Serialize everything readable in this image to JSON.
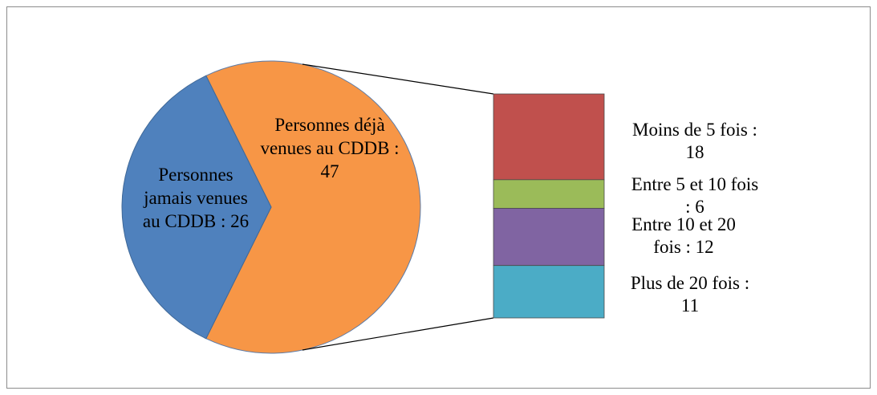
{
  "chart_data": {
    "type": "pie",
    "subtype": "bar-of-pie",
    "slices": [
      {
        "label_lines": [
          "Personnes",
          "jamais venues",
          "au CDDB  : 26"
        ],
        "value": 26,
        "color": "#4f81bd"
      },
      {
        "label_lines": [
          "Personnes déjà",
          "venues au CDDB :",
          "47"
        ],
        "value": 47,
        "color": "#f79646"
      }
    ],
    "breakdown_of": "Personnes déjà venues au CDDB",
    "segments": [
      {
        "label_lines": [
          "Moins de 5 fois  :",
          "18"
        ],
        "value": 18,
        "color": "#c0504d"
      },
      {
        "label_lines": [
          "Entre 5 et 10 fois",
          ": 6"
        ],
        "value": 6,
        "color": "#9bbb59"
      },
      {
        "label_lines": [
          "Entre 10 et 20",
          "fois  : 12"
        ],
        "value": 12,
        "color": "#8064a2"
      },
      {
        "label_lines": [
          "Plus de 20 fois  :",
          "11"
        ],
        "value": 11,
        "color": "#4bacc6"
      }
    ]
  }
}
